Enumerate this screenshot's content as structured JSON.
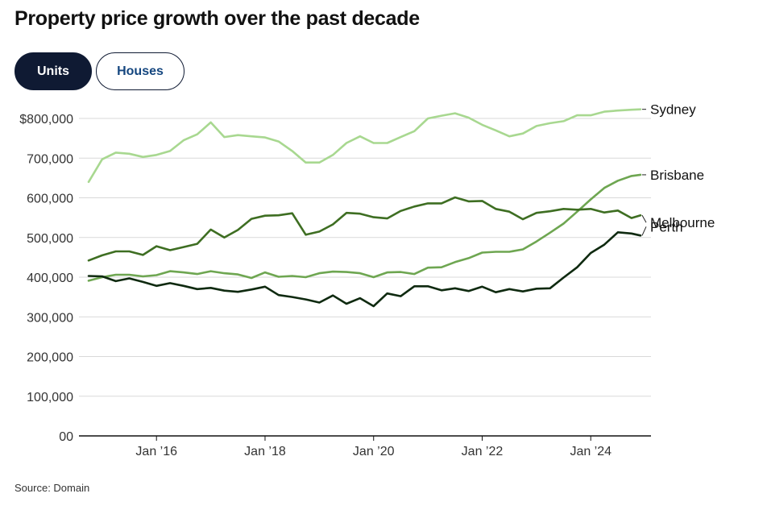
{
  "title": "Property price growth over the past decade",
  "tabs": [
    {
      "label": "Units",
      "active": true
    },
    {
      "label": "Houses",
      "active": false
    }
  ],
  "source": "Source: Domain",
  "colors": {
    "Sydney": "#a8d890",
    "Brisbane": "#6ea651",
    "Melbourne": "#3e6e22",
    "Perth": "#0f2a10",
    "grid": "#d9d9d9",
    "axis": "#111111"
  },
  "chart_data": {
    "type": "line",
    "title": "Property price growth over the past decade",
    "xlabel": "",
    "ylabel": "",
    "ylim": [
      0,
      800000
    ],
    "yticks": [
      {
        "value": 0,
        "label": "00"
      },
      {
        "value": 100000,
        "label": "100,000"
      },
      {
        "value": 200000,
        "label": "200,000"
      },
      {
        "value": 300000,
        "label": "300,000"
      },
      {
        "value": 400000,
        "label": "400,000"
      },
      {
        "value": 500000,
        "label": "500,000"
      },
      {
        "value": 600000,
        "label": "600,000"
      },
      {
        "value": 700000,
        "label": "700,000"
      },
      {
        "value": 800000,
        "label": "$800,000"
      }
    ],
    "xrange": [
      "2014-10",
      "2024-12"
    ],
    "xticks": [
      {
        "date": "2016-01",
        "label": "Jan ’16"
      },
      {
        "date": "2018-01",
        "label": "Jan ’18"
      },
      {
        "date": "2020-01",
        "label": "Jan ’20"
      },
      {
        "date": "2022-01",
        "label": "Jan ’22"
      },
      {
        "date": "2024-01",
        "label": "Jan ’24"
      }
    ],
    "grid": true,
    "x": [
      "2014-10",
      "2015-01",
      "2015-04",
      "2015-07",
      "2015-10",
      "2016-01",
      "2016-04",
      "2016-07",
      "2016-10",
      "2017-01",
      "2017-04",
      "2017-07",
      "2017-10",
      "2018-01",
      "2018-04",
      "2018-07",
      "2018-10",
      "2019-01",
      "2019-04",
      "2019-07",
      "2019-10",
      "2020-01",
      "2020-04",
      "2020-07",
      "2020-10",
      "2021-01",
      "2021-04",
      "2021-07",
      "2021-10",
      "2022-01",
      "2022-04",
      "2022-07",
      "2022-10",
      "2023-01",
      "2023-04",
      "2023-07",
      "2023-10",
      "2024-01",
      "2024-04",
      "2024-07",
      "2024-10",
      "2024-12"
    ],
    "series": [
      {
        "name": "Sydney",
        "values": [
          640000,
          697000,
          714000,
          711000,
          703000,
          708000,
          718000,
          745000,
          760000,
          790000,
          753000,
          758000,
          755000,
          752000,
          742000,
          718000,
          689000,
          689000,
          708000,
          738000,
          755000,
          738000,
          738000,
          753000,
          768000,
          800000,
          807000,
          813000,
          802000,
          784000,
          770000,
          755000,
          762000,
          781000,
          788000,
          793000,
          808000,
          808000,
          817000,
          820000,
          822000,
          823000
        ]
      },
      {
        "name": "Brisbane",
        "values": [
          391000,
          400000,
          406000,
          406000,
          402000,
          405000,
          415000,
          412000,
          408000,
          415000,
          410000,
          407000,
          398000,
          412000,
          401000,
          403000,
          400000,
          410000,
          414000,
          413000,
          410000,
          400000,
          412000,
          413000,
          408000,
          424000,
          425000,
          438000,
          448000,
          462000,
          464000,
          464000,
          470000,
          490000,
          512000,
          535000,
          565000,
          596000,
          625000,
          643000,
          655000,
          658000
        ]
      },
      {
        "name": "Melbourne",
        "values": [
          442000,
          455000,
          465000,
          465000,
          456000,
          478000,
          468000,
          476000,
          484000,
          520000,
          500000,
          519000,
          547000,
          555000,
          556000,
          561000,
          507000,
          515000,
          533000,
          562000,
          560000,
          551000,
          548000,
          567000,
          578000,
          586000,
          586000,
          601000,
          591000,
          592000,
          572000,
          565000,
          546000,
          562000,
          566000,
          572000,
          570000,
          572000,
          563000,
          568000,
          549000,
          556000
        ]
      },
      {
        "name": "Perth",
        "values": [
          403000,
          402000,
          390000,
          397000,
          388000,
          378000,
          385000,
          378000,
          370000,
          373000,
          366000,
          363000,
          369000,
          376000,
          355000,
          350000,
          344000,
          336000,
          354000,
          333000,
          347000,
          327000,
          359000,
          352000,
          377000,
          377000,
          367000,
          372000,
          365000,
          376000,
          362000,
          370000,
          364000,
          371000,
          372000,
          399000,
          425000,
          461000,
          482000,
          513000,
          510000,
          505000
        ]
      }
    ]
  }
}
